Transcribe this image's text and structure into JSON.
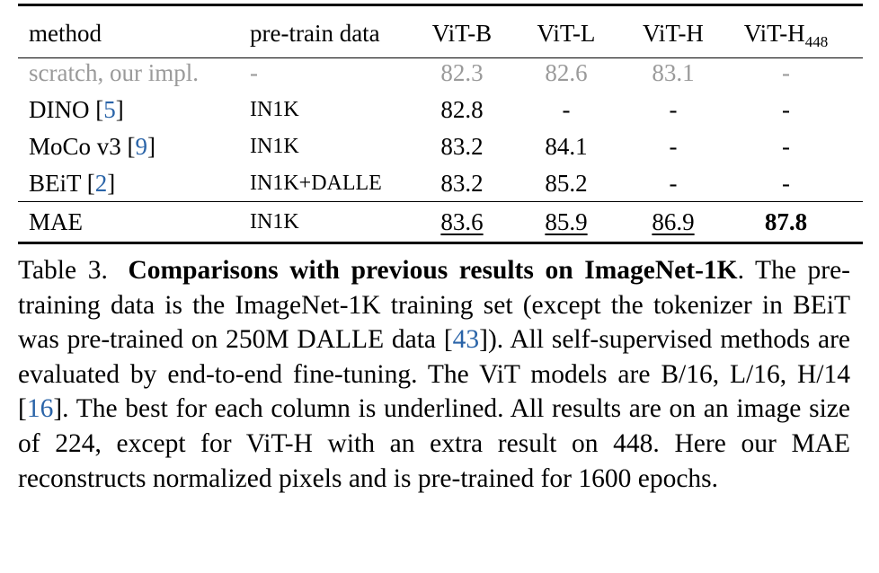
{
  "table": {
    "headers": {
      "method": "method",
      "pretrain": "pre-train data",
      "vit_b": "ViT-B",
      "vit_l": "ViT-L",
      "vit_h": "ViT-H",
      "vit_h448_main": "ViT-H",
      "vit_h448_sub": "448"
    },
    "rows": [
      {
        "method": "scratch, our impl.",
        "cite": "",
        "data": "-",
        "b": "82.3",
        "l": "82.6",
        "h": "83.1",
        "h448": "-"
      },
      {
        "method": "DINO [",
        "cite": "5",
        "cite_close": "]",
        "data": "IN1K",
        "b": "82.8",
        "l": "-",
        "h": "-",
        "h448": "-"
      },
      {
        "method": "MoCo v3 [",
        "cite": "9",
        "cite_close": "]",
        "data": "IN1K",
        "b": "83.2",
        "l": "84.1",
        "h": "-",
        "h448": "-"
      },
      {
        "method": "BEiT [",
        "cite": "2",
        "cite_close": "]",
        "data": "IN1K+DALLE",
        "b": "83.2",
        "l": "85.2",
        "h": "-",
        "h448": "-"
      },
      {
        "method": "MAE",
        "cite": "",
        "data": "IN1K",
        "b": "83.6",
        "l": "85.9",
        "h": "86.9",
        "h448": "87.8"
      }
    ]
  },
  "caption": {
    "label": "Table 3.",
    "title": "Comparisons with previous results on ImageNet-1K",
    "text_1": ". The pre-training data is the ImageNet-1K training set (except the tokenizer in BEiT was pre-trained on 250M DALLE data [",
    "cite_1": "43",
    "text_2": "]).  All self-supervised methods are evaluated by end-to-end fine-tuning. The ViT models are B/16, L/16, H/14 [",
    "cite_2": "16",
    "text_3": "]. The best for each column is underlined. All results are on an image size of 224, except for ViT-H with an extra result on 448. Here our MAE reconstructs normalized pixels and is pre-trained for 1600 epochs."
  },
  "colors": {
    "citation": "#2a64a8",
    "baseline_gray": "#9a9a9a"
  }
}
